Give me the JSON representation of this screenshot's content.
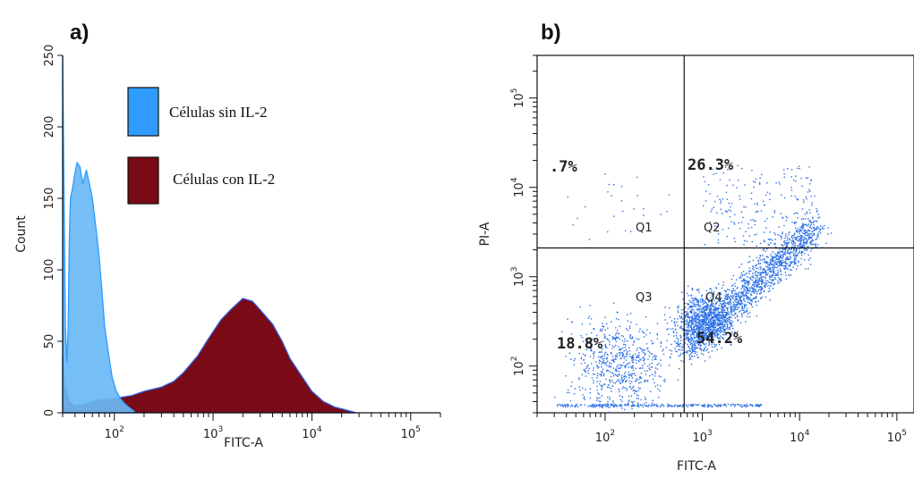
{
  "colors": {
    "sin": "#2f9bff",
    "sin_fill": "#6ab8f5",
    "con": "#7a0a16",
    "con_edge": "#3060e0",
    "dots": "#2a6fe6",
    "axis": "#111111"
  },
  "chart_data": [
    {
      "panel_label": "a)",
      "type": "area",
      "xlabel": "FITC-A",
      "ylabel": "Count",
      "xscale": "log",
      "xlim": [
        30,
        200000
      ],
      "ylim": [
        0,
        250
      ],
      "y_ticks": [
        "0",
        "50",
        "100",
        "150",
        "200",
        "250"
      ],
      "x_ticks": [
        {
          "base": "10",
          "exp": "2"
        },
        {
          "base": "10",
          "exp": "3"
        },
        {
          "base": "10",
          "exp": "4"
        },
        {
          "base": "10",
          "exp": "5"
        }
      ],
      "legend": "top-center",
      "series": [
        {
          "name": "Células sin IL-2",
          "x": [
            30,
            31,
            32,
            33,
            34,
            35,
            36,
            38,
            40,
            42,
            45,
            48,
            52,
            56,
            60,
            65,
            70,
            75,
            80,
            88,
            95,
            105,
            115,
            125,
            140,
            160
          ],
          "y": [
            250,
            150,
            60,
            35,
            55,
            120,
            150,
            158,
            168,
            175,
            172,
            160,
            170,
            160,
            150,
            130,
            110,
            85,
            60,
            40,
            25,
            15,
            10,
            7,
            4,
            1
          ]
        },
        {
          "name": "Células con IL-2",
          "x": [
            30,
            32,
            35,
            40,
            50,
            70,
            100,
            150,
            200,
            300,
            400,
            500,
            700,
            900,
            1200,
            1500,
            2000,
            2500,
            3000,
            4000,
            5000,
            6000,
            8000,
            10000,
            13000,
            17000,
            22000,
            28000
          ],
          "y": [
            40,
            18,
            8,
            5,
            6,
            9,
            10,
            12,
            15,
            18,
            22,
            28,
            40,
            52,
            65,
            72,
            80,
            78,
            72,
            62,
            50,
            38,
            25,
            15,
            8,
            4,
            2,
            0
          ]
        }
      ]
    },
    {
      "panel_label": "b)",
      "type": "scatter",
      "xlabel": "FITC-A",
      "ylabel": "PI-A",
      "xscale": "log",
      "yscale": "log",
      "xlim": [
        20,
        150000
      ],
      "ylim": [
        30,
        300000
      ],
      "x_ticks": [
        {
          "base": "10",
          "exp": "2"
        },
        {
          "base": "10",
          "exp": "3"
        },
        {
          "base": "10",
          "exp": "4"
        },
        {
          "base": "10",
          "exp": "5"
        }
      ],
      "y_ticks": [
        {
          "base": "10",
          "exp": "2"
        },
        {
          "base": "10",
          "exp": "3"
        },
        {
          "base": "10",
          "exp": "4"
        },
        {
          "base": "10",
          "exp": "5"
        }
      ],
      "gate_x": 650,
      "gate_y": 2100,
      "quadrants": [
        {
          "name": "Q1",
          "percent": ".7%"
        },
        {
          "name": "Q2",
          "percent": "26.3%"
        },
        {
          "name": "Q3",
          "percent": "18.8%"
        },
        {
          "name": "Q4",
          "percent": "54.2%"
        }
      ]
    }
  ]
}
